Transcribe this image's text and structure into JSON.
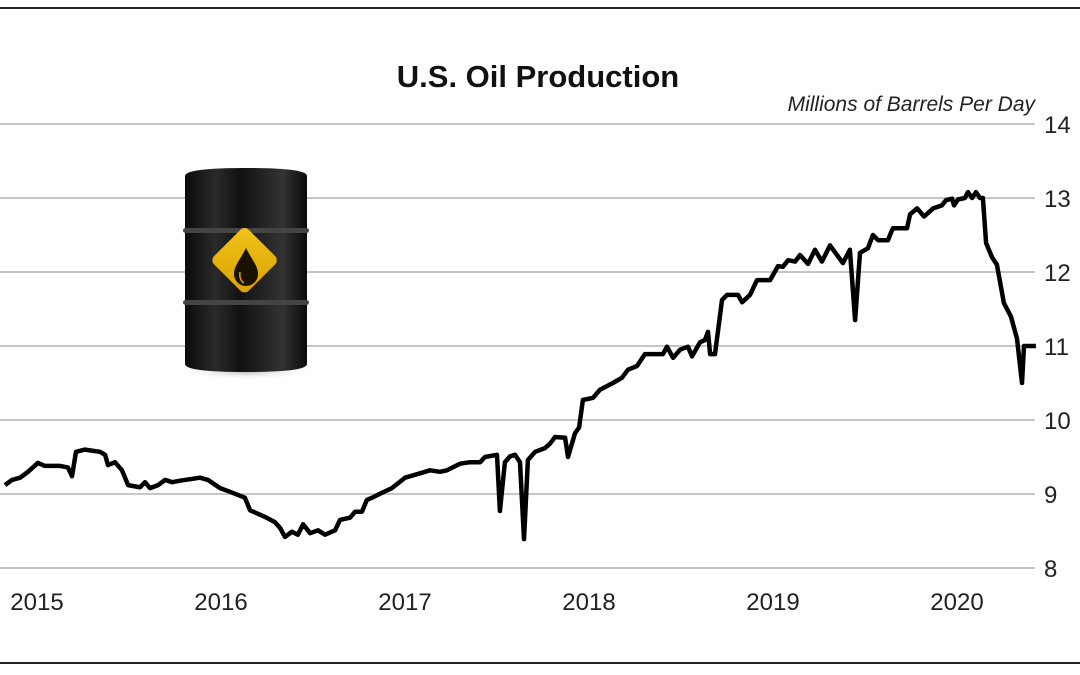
{
  "chart_data": {
    "type": "line",
    "title": "U.S. Oil Production",
    "subtitle": "Millions of Barrels Per Day",
    "xlabel": "",
    "ylabel": "",
    "ylim": [
      8,
      14
    ],
    "xlim": [
      2014.82,
      2020.43
    ],
    "yticks": [
      "8",
      "9",
      "10",
      "11",
      "12",
      "13",
      "14"
    ],
    "xticks": [
      {
        "label": "2015",
        "value": 2015
      },
      {
        "label": "2016",
        "value": 2016
      },
      {
        "label": "2017",
        "value": 2017
      },
      {
        "label": "2018",
        "value": 2018
      },
      {
        "label": "2019",
        "value": 2019
      },
      {
        "label": "2020",
        "value": 2020
      }
    ],
    "grid": "horizontal",
    "y_axis_side": "right",
    "line_color": "#000000",
    "grid_color": "#b3b3b3",
    "decoration": "oil-barrel-icon",
    "series": [
      {
        "x": [
          2014.826,
          2014.864,
          2014.908,
          2014.951,
          2015.005,
          2015.043,
          2015.125,
          2015.168,
          2015.19,
          2015.212,
          2015.261,
          2015.342,
          2015.37,
          2015.386,
          2015.424,
          2015.462,
          2015.495,
          2015.56,
          2015.587,
          2015.614,
          2015.658,
          2015.696,
          2015.734,
          2015.777,
          2015.832,
          2015.886,
          2015.929,
          2015.995,
          2016.049,
          2016.13,
          2016.158,
          2016.239,
          2016.293,
          2016.321,
          2016.348,
          2016.386,
          2016.418,
          2016.446,
          2016.484,
          2016.527,
          2016.565,
          2016.62,
          2016.647,
          2016.701,
          2016.728,
          2016.766,
          2016.793,
          2016.821,
          2016.853,
          2016.929,
          2017.0,
          2017.082,
          2017.136,
          2017.19,
          2017.228,
          2017.299,
          2017.353,
          2017.408,
          2017.435,
          2017.5,
          2017.516,
          2017.543,
          2017.571,
          2017.598,
          2017.625,
          2017.647,
          2017.668,
          2017.707,
          2017.761,
          2017.788,
          2017.815,
          2017.87,
          2017.886,
          2017.924,
          2017.946,
          2017.967,
          2018.022,
          2018.06,
          2018.13,
          2018.179,
          2018.212,
          2018.261,
          2018.304,
          2018.402,
          2018.424,
          2018.457,
          2018.495,
          2018.538,
          2018.56,
          2018.603,
          2018.63,
          2018.647,
          2018.658,
          2018.685,
          2018.723,
          2018.75,
          2018.81,
          2018.832,
          2018.875,
          2018.913,
          2018.984,
          2019.027,
          2019.054,
          2019.082,
          2019.12,
          2019.147,
          2019.19,
          2019.228,
          2019.266,
          2019.31,
          2019.38,
          2019.418,
          2019.446,
          2019.473,
          2019.516,
          2019.543,
          2019.571,
          2019.625,
          2019.641,
          2019.652,
          2019.728,
          2019.745,
          2019.783,
          2019.821,
          2019.87,
          2019.918,
          2019.94,
          2019.973,
          2019.984,
          2020.005,
          2020.043,
          2020.06,
          2020.082,
          2020.103,
          2020.125,
          2020.141,
          2020.158,
          2020.19,
          2020.217,
          2020.255,
          2020.293,
          2020.326,
          2020.353,
          2020.364,
          2020.429
        ],
        "y": [
          9.12,
          9.19,
          9.22,
          9.3,
          9.42,
          9.38,
          9.38,
          9.36,
          9.24,
          9.57,
          9.6,
          9.57,
          9.53,
          9.39,
          9.43,
          9.32,
          9.12,
          9.09,
          9.16,
          9.08,
          9.12,
          9.19,
          9.16,
          9.18,
          9.2,
          9.22,
          9.19,
          9.08,
          9.03,
          8.95,
          8.78,
          8.69,
          8.62,
          8.54,
          8.42,
          8.49,
          8.45,
          8.59,
          8.47,
          8.51,
          8.45,
          8.51,
          8.65,
          8.68,
          8.76,
          8.76,
          8.92,
          8.95,
          8.99,
          9.08,
          9.22,
          9.28,
          9.32,
          9.3,
          9.32,
          9.41,
          9.43,
          9.43,
          9.5,
          9.53,
          8.77,
          9.43,
          9.51,
          9.53,
          9.43,
          8.39,
          9.46,
          9.57,
          9.62,
          9.68,
          9.77,
          9.76,
          9.5,
          9.82,
          9.9,
          10.27,
          10.3,
          10.41,
          10.5,
          10.57,
          10.68,
          10.73,
          10.89,
          10.89,
          10.99,
          10.84,
          10.95,
          10.99,
          10.86,
          11.05,
          11.08,
          11.19,
          10.89,
          10.89,
          11.62,
          11.69,
          11.69,
          11.59,
          11.69,
          11.89,
          11.89,
          12.08,
          12.07,
          12.16,
          12.14,
          12.23,
          12.11,
          12.3,
          12.14,
          12.36,
          12.12,
          12.3,
          11.35,
          12.26,
          12.32,
          12.5,
          12.43,
          12.43,
          12.53,
          12.59,
          12.59,
          12.78,
          12.86,
          12.75,
          12.86,
          12.9,
          12.97,
          12.99,
          12.9,
          12.98,
          13.0,
          13.08,
          13.0,
          13.08,
          13.0,
          13.0,
          12.39,
          12.2,
          12.1,
          11.58,
          11.4,
          11.1,
          10.5,
          11.0,
          11.0
        ]
      }
    ]
  }
}
